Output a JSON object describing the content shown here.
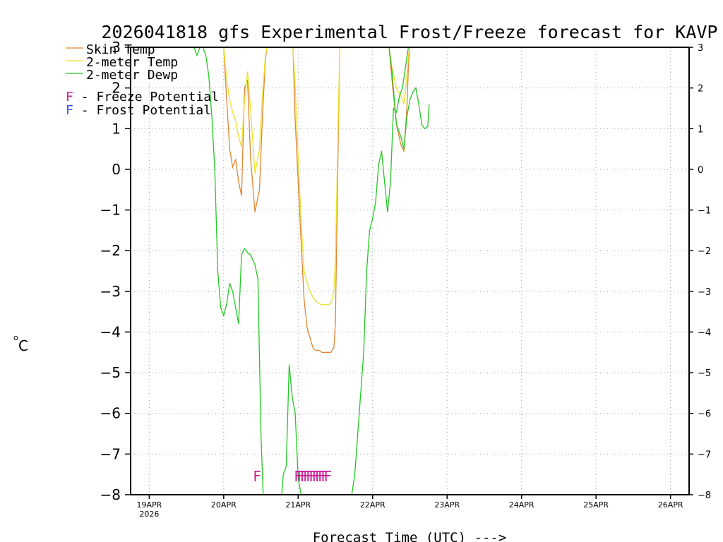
{
  "chart_data": {
    "type": "line",
    "title": "2026041818 gfs Experimental Frost/Freeze forecast for KAVP",
    "ylabel_unit": "o",
    "ylabel_letter": "C",
    "xlabel": "Forecast Time (UTC) --->",
    "ylim": [
      -8,
      3
    ],
    "xlim": [
      -0.25,
      7.25
    ],
    "y_ticks": [
      3,
      2,
      1,
      0,
      -1,
      -2,
      -3,
      -4,
      -5,
      -6,
      -7,
      -8
    ],
    "y_tick_labels": [
      "3",
      "2",
      "1",
      "0",
      "−1",
      "−2",
      "−3",
      "−4",
      "−5",
      "−6",
      "−7",
      "−8"
    ],
    "x_ticks": [
      0,
      1,
      2,
      3,
      4,
      5,
      6,
      7
    ],
    "x_tick_labels": [
      "19APR",
      "20APR",
      "21APR",
      "22APR",
      "23APR",
      "24APR",
      "25APR",
      "26APR"
    ],
    "x_year_label": "2026",
    "grid": true,
    "legend": [
      {
        "label": "Skin Temp",
        "color": "#e08530"
      },
      {
        "label": "2-meter Temp",
        "color": "#ece02a"
      },
      {
        "label": "2-meter Dewp",
        "color": "#22c822"
      }
    ],
    "potential_legend": [
      {
        "letter": "F",
        "label": " - Freeze Potential",
        "color": "#c81e9a"
      },
      {
        "letter": "F",
        "label": " - Frost Potential",
        "color": "#3c55e6"
      }
    ],
    "series": [
      {
        "name": "Skin Temp",
        "color": "#e08530",
        "segments": [
          [
            [
              1.0,
              3
            ],
            [
              1.04,
              1.7
            ],
            [
              1.08,
              0.5
            ],
            [
              1.12,
              0.05
            ],
            [
              1.16,
              0.25
            ],
            [
              1.2,
              -0.3
            ],
            [
              1.24,
              -0.65
            ],
            [
              1.28,
              2.0
            ],
            [
              1.32,
              2.2
            ],
            [
              1.36,
              0.3
            ],
            [
              1.42,
              -1.05
            ],
            [
              1.48,
              -0.5
            ],
            [
              1.52,
              1.3
            ],
            [
              1.56,
              2.7
            ],
            [
              1.58,
              3
            ]
          ],
          [
            [
              1.93,
              3
            ],
            [
              1.96,
              1.2
            ],
            [
              2.0,
              -0.3
            ],
            [
              2.04,
              -1.8
            ],
            [
              2.08,
              -3.2
            ],
            [
              2.12,
              -3.9
            ],
            [
              2.16,
              -4.15
            ],
            [
              2.2,
              -4.4
            ],
            [
              2.24,
              -4.45
            ],
            [
              2.28,
              -4.45
            ],
            [
              2.32,
              -4.5
            ],
            [
              2.36,
              -4.5
            ],
            [
              2.4,
              -4.5
            ],
            [
              2.44,
              -4.5
            ],
            [
              2.48,
              -4.38
            ],
            [
              2.5,
              -3.8
            ],
            [
              2.52,
              -1.5
            ],
            [
              2.54,
              1.0
            ],
            [
              2.56,
              3
            ]
          ],
          [
            [
              3.22,
              3
            ],
            [
              3.26,
              2.2
            ],
            [
              3.32,
              1.1
            ],
            [
              3.38,
              0.6
            ],
            [
              3.42,
              0.45
            ],
            [
              3.46,
              1.5
            ],
            [
              3.48,
              2.5
            ],
            [
              3.5,
              3
            ]
          ]
        ]
      },
      {
        "name": "2-meter Temp",
        "color": "#ece02a",
        "segments": [
          [
            [
              1.0,
              3
            ],
            [
              1.04,
              2.2
            ],
            [
              1.08,
              1.7
            ],
            [
              1.12,
              1.4
            ],
            [
              1.16,
              1.2
            ],
            [
              1.2,
              0.8
            ],
            [
              1.24,
              0.55
            ],
            [
              1.28,
              1.7
            ],
            [
              1.32,
              2.4
            ],
            [
              1.36,
              1.5
            ],
            [
              1.42,
              -0.1
            ],
            [
              1.48,
              0.5
            ],
            [
              1.52,
              1.8
            ],
            [
              1.56,
              2.8
            ],
            [
              1.58,
              3
            ]
          ],
          [
            [
              1.93,
              3
            ],
            [
              1.96,
              2.0
            ],
            [
              2.0,
              0.3
            ],
            [
              2.04,
              -1.3
            ],
            [
              2.08,
              -2.5
            ],
            [
              2.12,
              -2.8
            ],
            [
              2.16,
              -3.0
            ],
            [
              2.2,
              -3.15
            ],
            [
              2.24,
              -3.25
            ],
            [
              2.28,
              -3.3
            ],
            [
              2.32,
              -3.33
            ],
            [
              2.36,
              -3.33
            ],
            [
              2.4,
              -3.33
            ],
            [
              2.44,
              -3.3
            ],
            [
              2.48,
              -3.0
            ],
            [
              2.5,
              -2.2
            ],
            [
              2.52,
              -0.5
            ],
            [
              2.54,
              1.5
            ],
            [
              2.56,
              3
            ]
          ],
          [
            [
              3.22,
              3
            ],
            [
              3.26,
              2.5
            ],
            [
              3.32,
              2.0
            ],
            [
              3.38,
              1.8
            ],
            [
              3.42,
              1.6
            ],
            [
              3.46,
              2.3
            ],
            [
              3.48,
              2.8
            ],
            [
              3.5,
              3
            ]
          ]
        ]
      },
      {
        "name": "2-meter Dewp",
        "color": "#22c822",
        "segments": [
          [
            [
              0.6,
              3
            ],
            [
              0.64,
              2.8
            ],
            [
              0.68,
              3
            ],
            [
              0.72,
              3
            ],
            [
              0.76,
              2.8
            ],
            [
              0.8,
              2.3
            ],
            [
              0.84,
              1.3
            ],
            [
              0.88,
              0.0
            ],
            [
              0.92,
              -2.5
            ],
            [
              0.96,
              -3.4
            ],
            [
              1.0,
              -3.6
            ],
            [
              1.04,
              -3.3
            ],
            [
              1.08,
              -2.8
            ],
            [
              1.12,
              -3.0
            ],
            [
              1.16,
              -3.4
            ],
            [
              1.2,
              -3.8
            ],
            [
              1.24,
              -2.1
            ],
            [
              1.28,
              -1.95
            ],
            [
              1.32,
              -2.05
            ],
            [
              1.36,
              -2.1
            ],
            [
              1.42,
              -2.35
            ],
            [
              1.46,
              -2.7
            ],
            [
              1.5,
              -6.5
            ],
            [
              1.53,
              -8
            ]
          ],
          [
            [
              1.78,
              -8
            ],
            [
              1.8,
              -7.5
            ],
            [
              1.84,
              -7.3
            ],
            [
              1.88,
              -4.8
            ],
            [
              1.92,
              -5.6
            ],
            [
              1.96,
              -6.0
            ],
            [
              2.0,
              -7.6
            ],
            [
              2.04,
              -8
            ]
          ],
          [
            [
              2.72,
              -8
            ],
            [
              2.76,
              -7.5
            ],
            [
              2.8,
              -6.5
            ],
            [
              2.84,
              -5.5
            ],
            [
              2.88,
              -4.5
            ],
            [
              2.92,
              -2.5
            ],
            [
              2.96,
              -1.5
            ],
            [
              3.0,
              -1.2
            ],
            [
              3.04,
              -0.8
            ],
            [
              3.08,
              0.1
            ],
            [
              3.12,
              0.45
            ],
            [
              3.16,
              -0.3
            ],
            [
              3.2,
              -1.05
            ],
            [
              3.24,
              -0.3
            ],
            [
              3.28,
              1.5
            ],
            [
              3.32,
              1.4
            ],
            [
              3.36,
              1.8
            ],
            [
              3.4,
              2.0
            ],
            [
              3.44,
              2.5
            ],
            [
              3.48,
              3
            ]
          ],
          [
            [
              3.22,
              3
            ],
            [
              3.26,
              2.4
            ],
            [
              3.32,
              1.1
            ],
            [
              3.38,
              0.8
            ],
            [
              3.42,
              0.5
            ],
            [
              3.46,
              1.3
            ],
            [
              3.5,
              1.7
            ],
            [
              3.54,
              1.9
            ],
            [
              3.58,
              2.0
            ],
            [
              3.62,
              1.6
            ],
            [
              3.66,
              1.1
            ],
            [
              3.7,
              1.0
            ],
            [
              3.74,
              1.05
            ],
            [
              3.76,
              1.6
            ]
          ]
        ]
      }
    ],
    "freeze_markers": {
      "letter": "F",
      "color": "#c81e9a",
      "times": [
        1.45,
        2.0,
        2.04,
        2.08,
        2.12,
        2.16,
        2.2,
        2.24,
        2.28,
        2.32,
        2.36,
        2.4
      ],
      "y": -7.55
    }
  }
}
